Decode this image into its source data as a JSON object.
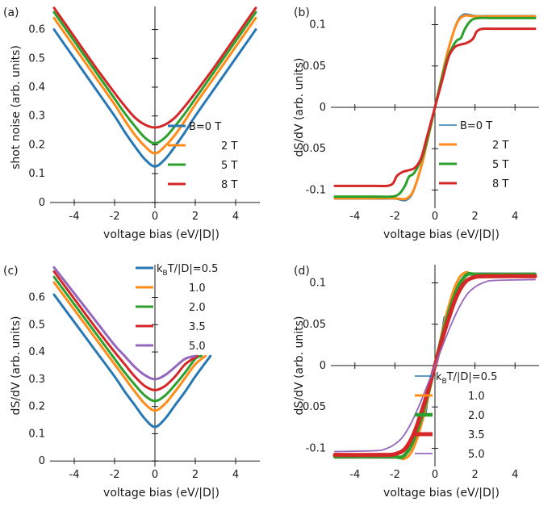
{
  "colors": {
    "blue": "#2878b5",
    "orange": "#ff8c1a",
    "green": "#2ca02c",
    "red": "#d62728",
    "purple": "#9467bd"
  },
  "chart_data": [
    {
      "panel": "(a)",
      "type": "line",
      "xlabel": "voltage bias (eV/|D|)",
      "ylabel": "shot noise (arb. units)",
      "xlim": [
        -5.2,
        5.2
      ],
      "ylim": [
        -0.02,
        0.68
      ],
      "xticks": [
        -4,
        -2,
        0,
        2,
        4
      ],
      "yticks": [
        0,
        0.1,
        0.2,
        0.3,
        0.4,
        0.5,
        0.6
      ],
      "ytick_labels": [
        "0",
        "0.1",
        "0.2",
        "0.3",
        "0.4",
        "0.5",
        "0.6"
      ],
      "legend_position": "lower-right",
      "series": [
        {
          "name": "B=0 T",
          "color": "blue",
          "width": 3,
          "x": [
            -5,
            -4,
            -3,
            -2,
            -1.5,
            -1,
            -0.5,
            0,
            0.5,
            1,
            1.5,
            2,
            3,
            4,
            5
          ],
          "y": [
            0.6,
            0.5,
            0.4,
            0.3,
            0.245,
            0.195,
            0.15,
            0.125,
            0.15,
            0.195,
            0.245,
            0.3,
            0.4,
            0.5,
            0.6
          ]
        },
        {
          "name": "2 T",
          "color": "orange",
          "width": 3,
          "x": [
            -5,
            -4,
            -3,
            -2,
            -1.5,
            -1,
            -0.5,
            0,
            0.5,
            1,
            1.5,
            2,
            3,
            4,
            5
          ],
          "y": [
            0.64,
            0.54,
            0.44,
            0.34,
            0.285,
            0.235,
            0.195,
            0.17,
            0.195,
            0.235,
            0.285,
            0.34,
            0.44,
            0.54,
            0.64
          ]
        },
        {
          "name": "5 T",
          "color": "green",
          "width": 3,
          "x": [
            -5,
            -4,
            -3,
            -2,
            -1.5,
            -1,
            -0.5,
            0,
            0.5,
            1,
            1.5,
            2,
            3,
            4,
            5
          ],
          "y": [
            0.66,
            0.56,
            0.46,
            0.36,
            0.31,
            0.265,
            0.225,
            0.205,
            0.225,
            0.265,
            0.31,
            0.36,
            0.46,
            0.56,
            0.66
          ]
        },
        {
          "name": "8 T",
          "color": "red",
          "width": 3,
          "x": [
            -5,
            -4,
            -3,
            -2,
            -1.5,
            -1,
            -0.5,
            0,
            0.5,
            1,
            1.5,
            2,
            3,
            4,
            5
          ],
          "y": [
            0.675,
            0.575,
            0.475,
            0.38,
            0.335,
            0.295,
            0.27,
            0.26,
            0.27,
            0.295,
            0.335,
            0.38,
            0.475,
            0.575,
            0.675
          ]
        }
      ]
    },
    {
      "panel": "(b)",
      "type": "line",
      "xlabel": "voltage bias (eV/|D|)",
      "ylabel": "dS/dV (arb. units)",
      "xlim": [
        -5.2,
        5.2
      ],
      "ylim": [
        -0.122,
        0.122
      ],
      "xticks": [
        -4,
        -2,
        0,
        2,
        4
      ],
      "yticks": [
        -0.1,
        -0.05,
        0,
        0.05,
        0.1
      ],
      "ytick_labels": [
        "-0.1",
        "-0.05",
        "0",
        "0.05",
        "0.1"
      ],
      "legend_position": "lower-right",
      "series": [
        {
          "name": "B=0 T",
          "color": "blue",
          "width": 1.6,
          "x": [
            -5,
            -3,
            -2,
            -1.5,
            -1.2,
            -1,
            -0.8,
            -0.6,
            -0.4,
            -0.2,
            0,
            0.2,
            0.4,
            0.6,
            0.8,
            1,
            1.2,
            1.5,
            2,
            3,
            5
          ],
          "y": [
            -0.111,
            -0.111,
            -0.111,
            -0.113,
            -0.108,
            -0.098,
            -0.083,
            -0.065,
            -0.044,
            -0.022,
            0,
            0.022,
            0.044,
            0.065,
            0.083,
            0.098,
            0.108,
            0.113,
            0.111,
            0.111,
            0.111
          ]
        },
        {
          "name": "2 T",
          "color": "orange",
          "width": 3,
          "x": [
            -5,
            -3,
            -2,
            -1.5,
            -1.2,
            -1,
            -0.8,
            -0.6,
            -0.4,
            -0.2,
            0,
            0.2,
            0.4,
            0.6,
            0.8,
            1,
            1.2,
            1.5,
            2,
            3,
            5
          ],
          "y": [
            -0.11,
            -0.11,
            -0.11,
            -0.111,
            -0.106,
            -0.096,
            -0.081,
            -0.064,
            -0.043,
            -0.022,
            0,
            0.022,
            0.043,
            0.064,
            0.081,
            0.096,
            0.106,
            0.111,
            0.11,
            0.11,
            0.11
          ]
        },
        {
          "name": "5 T",
          "color": "green",
          "width": 3,
          "x": [
            -5,
            -3,
            -2.2,
            -1.8,
            -1.5,
            -1.3,
            -1.1,
            -0.9,
            -0.6,
            -0.3,
            0,
            0.3,
            0.6,
            0.9,
            1.1,
            1.3,
            1.5,
            1.8,
            2.2,
            3,
            5
          ],
          "y": [
            -0.108,
            -0.108,
            -0.108,
            -0.105,
            -0.095,
            -0.084,
            -0.081,
            -0.074,
            -0.058,
            -0.031,
            0,
            0.031,
            0.058,
            0.074,
            0.081,
            0.084,
            0.095,
            0.105,
            0.108,
            0.108,
            0.108
          ]
        },
        {
          "name": "8 T",
          "color": "red",
          "width": 3,
          "x": [
            -5,
            -3,
            -2.4,
            -2.1,
            -1.9,
            -1.6,
            -1.3,
            -1.0,
            -0.7,
            -0.4,
            0,
            0.4,
            0.7,
            1.0,
            1.3,
            1.6,
            1.9,
            2.1,
            2.4,
            3,
            5
          ],
          "y": [
            -0.095,
            -0.095,
            -0.095,
            -0.092,
            -0.083,
            -0.078,
            -0.076,
            -0.073,
            -0.062,
            -0.036,
            0,
            0.036,
            0.062,
            0.073,
            0.076,
            0.078,
            0.083,
            0.092,
            0.095,
            0.095,
            0.095
          ]
        }
      ]
    },
    {
      "panel": "(c)",
      "type": "line",
      "xlabel": "voltage bias (eV/|D|)",
      "ylabel": "dS/dV (arb. units)",
      "xlim": [
        -5.2,
        5.2
      ],
      "ylim": [
        -0.02,
        0.72
      ],
      "xticks": [
        -4,
        -2,
        0,
        2,
        4
      ],
      "yticks": [
        0,
        0.1,
        0.2,
        0.3,
        0.4,
        0.5,
        0.6
      ],
      "ytick_labels": [
        "0",
        "0.1",
        "0.2",
        "0.3",
        "0.4",
        "0.5",
        "0.6"
      ],
      "legend_position": "upper-right",
      "legend_prefix": "k",
      "legend_prefix_sub": "B",
      "legend_prefix_rest": "T/|D|=",
      "series": [
        {
          "name": "0.5",
          "color": "blue",
          "width": 3,
          "x": [
            -5,
            -4,
            -3,
            -2,
            -1.5,
            -1,
            -0.5,
            0,
            0.5,
            1,
            1.5,
            2,
            2.75
          ],
          "y": [
            0.61,
            0.51,
            0.41,
            0.31,
            0.255,
            0.205,
            0.155,
            0.125,
            0.155,
            0.205,
            0.255,
            0.31,
            0.385
          ]
        },
        {
          "name": "1.0",
          "color": "orange",
          "width": 3,
          "x": [
            -5,
            -4,
            -3,
            -2,
            -1.5,
            -1,
            -0.5,
            0,
            0.5,
            1,
            1.5,
            2,
            2.5
          ],
          "y": [
            0.655,
            0.555,
            0.455,
            0.355,
            0.305,
            0.255,
            0.21,
            0.185,
            0.21,
            0.255,
            0.305,
            0.355,
            0.385
          ]
        },
        {
          "name": "2.0",
          "color": "green",
          "width": 3,
          "x": [
            -5,
            -4,
            -3,
            -2,
            -1.5,
            -1,
            -0.5,
            0,
            0.5,
            1,
            1.5,
            2,
            2.3
          ],
          "y": [
            0.675,
            0.575,
            0.475,
            0.375,
            0.325,
            0.28,
            0.24,
            0.22,
            0.24,
            0.28,
            0.325,
            0.375,
            0.385
          ]
        },
        {
          "name": "3.5",
          "color": "red",
          "width": 3,
          "x": [
            -5,
            -4,
            -3,
            -2,
            -1.5,
            -1,
            -0.5,
            0,
            0.5,
            1,
            1.5,
            2,
            2.1
          ],
          "y": [
            0.695,
            0.595,
            0.495,
            0.4,
            0.355,
            0.31,
            0.275,
            0.26,
            0.275,
            0.31,
            0.355,
            0.38,
            0.385
          ]
        },
        {
          "name": "5.0",
          "color": "purple",
          "width": 3,
          "x": [
            -5,
            -4,
            -3,
            -2,
            -1.5,
            -1,
            -0.5,
            0,
            0.5,
            1,
            1.5,
            2
          ],
          "y": [
            0.71,
            0.615,
            0.52,
            0.425,
            0.385,
            0.345,
            0.315,
            0.3,
            0.315,
            0.345,
            0.375,
            0.385
          ]
        }
      ]
    },
    {
      "panel": "(d)",
      "type": "line",
      "xlabel": "voltage bias (eV/|D|)",
      "ylabel": "dS/dV (arb. units)",
      "xlim": [
        -5.2,
        5.2
      ],
      "ylim": [
        -0.122,
        0.122
      ],
      "xticks": [
        -4,
        -2,
        0,
        2,
        4
      ],
      "yticks": [
        -0.1,
        -0.05,
        0,
        0.05,
        0.1
      ],
      "ytick_labels": [
        "-0.1",
        "-0.05",
        "0",
        "0.05",
        "0.1"
      ],
      "legend_position": "lower-right",
      "legend_prefix": "k",
      "legend_prefix_sub": "B",
      "legend_prefix_rest": "T/|D|=",
      "series": [
        {
          "name": "0.5",
          "color": "blue",
          "width": 1.4,
          "x": [
            -5,
            -2,
            -1.5,
            -1.3,
            -1.1,
            -0.9,
            -0.7,
            -0.55,
            -0.45,
            -0.3,
            -0.15,
            0,
            0.15,
            0.3,
            0.45,
            0.55,
            0.7,
            0.9,
            1.1,
            1.3,
            1.5,
            2,
            5
          ],
          "y": [
            -0.112,
            -0.112,
            -0.113,
            -0.108,
            -0.099,
            -0.087,
            -0.072,
            -0.058,
            -0.058,
            -0.035,
            -0.018,
            0,
            0.018,
            0.035,
            0.058,
            0.058,
            0.072,
            0.087,
            0.099,
            0.108,
            0.113,
            0.112,
            0.112
          ]
        },
        {
          "name": "1.0",
          "color": "orange",
          "width": 3,
          "x": [
            -5,
            -2,
            -1.6,
            -1.3,
            -1.1,
            -0.9,
            -0.7,
            -0.5,
            -0.3,
            0,
            0.3,
            0.5,
            0.7,
            0.9,
            1.1,
            1.3,
            1.6,
            2,
            5
          ],
          "y": [
            -0.111,
            -0.111,
            -0.113,
            -0.109,
            -0.101,
            -0.089,
            -0.073,
            -0.055,
            -0.034,
            0,
            0.034,
            0.055,
            0.073,
            0.089,
            0.101,
            0.109,
            0.113,
            0.111,
            0.111
          ]
        },
        {
          "name": "2.0",
          "color": "green",
          "width": 4.5,
          "x": [
            -5,
            -2.2,
            -1.7,
            -1.4,
            -1.1,
            -0.8,
            -0.5,
            -0.25,
            0,
            0.25,
            0.5,
            0.8,
            1.1,
            1.4,
            1.7,
            2.2,
            5
          ],
          "y": [
            -0.11,
            -0.11,
            -0.111,
            -0.105,
            -0.092,
            -0.072,
            -0.048,
            -0.025,
            0,
            0.025,
            0.048,
            0.072,
            0.092,
            0.105,
            0.111,
            0.11,
            0.11
          ]
        },
        {
          "name": "3.5",
          "color": "red",
          "width": 5,
          "x": [
            -5,
            -2.5,
            -2,
            -1.6,
            -1.3,
            -1,
            -0.7,
            -0.4,
            0,
            0.4,
            0.7,
            1,
            1.3,
            1.6,
            2,
            2.5,
            5
          ],
          "y": [
            -0.108,
            -0.108,
            -0.107,
            -0.103,
            -0.094,
            -0.079,
            -0.058,
            -0.035,
            0,
            0.035,
            0.058,
            0.079,
            0.094,
            0.103,
            0.107,
            0.108,
            0.108
          ]
        },
        {
          "name": "5.0",
          "color": "purple",
          "width": 1.8,
          "x": [
            -5,
            -3,
            -2.5,
            -2,
            -1.6,
            -1.2,
            -0.8,
            -0.4,
            0,
            0.4,
            0.8,
            1.2,
            1.6,
            2,
            2.5,
            3,
            5
          ],
          "y": [
            -0.104,
            -0.103,
            -0.101,
            -0.095,
            -0.086,
            -0.07,
            -0.049,
            -0.025,
            0,
            0.025,
            0.049,
            0.07,
            0.086,
            0.095,
            0.101,
            0.103,
            0.104
          ]
        }
      ]
    }
  ]
}
